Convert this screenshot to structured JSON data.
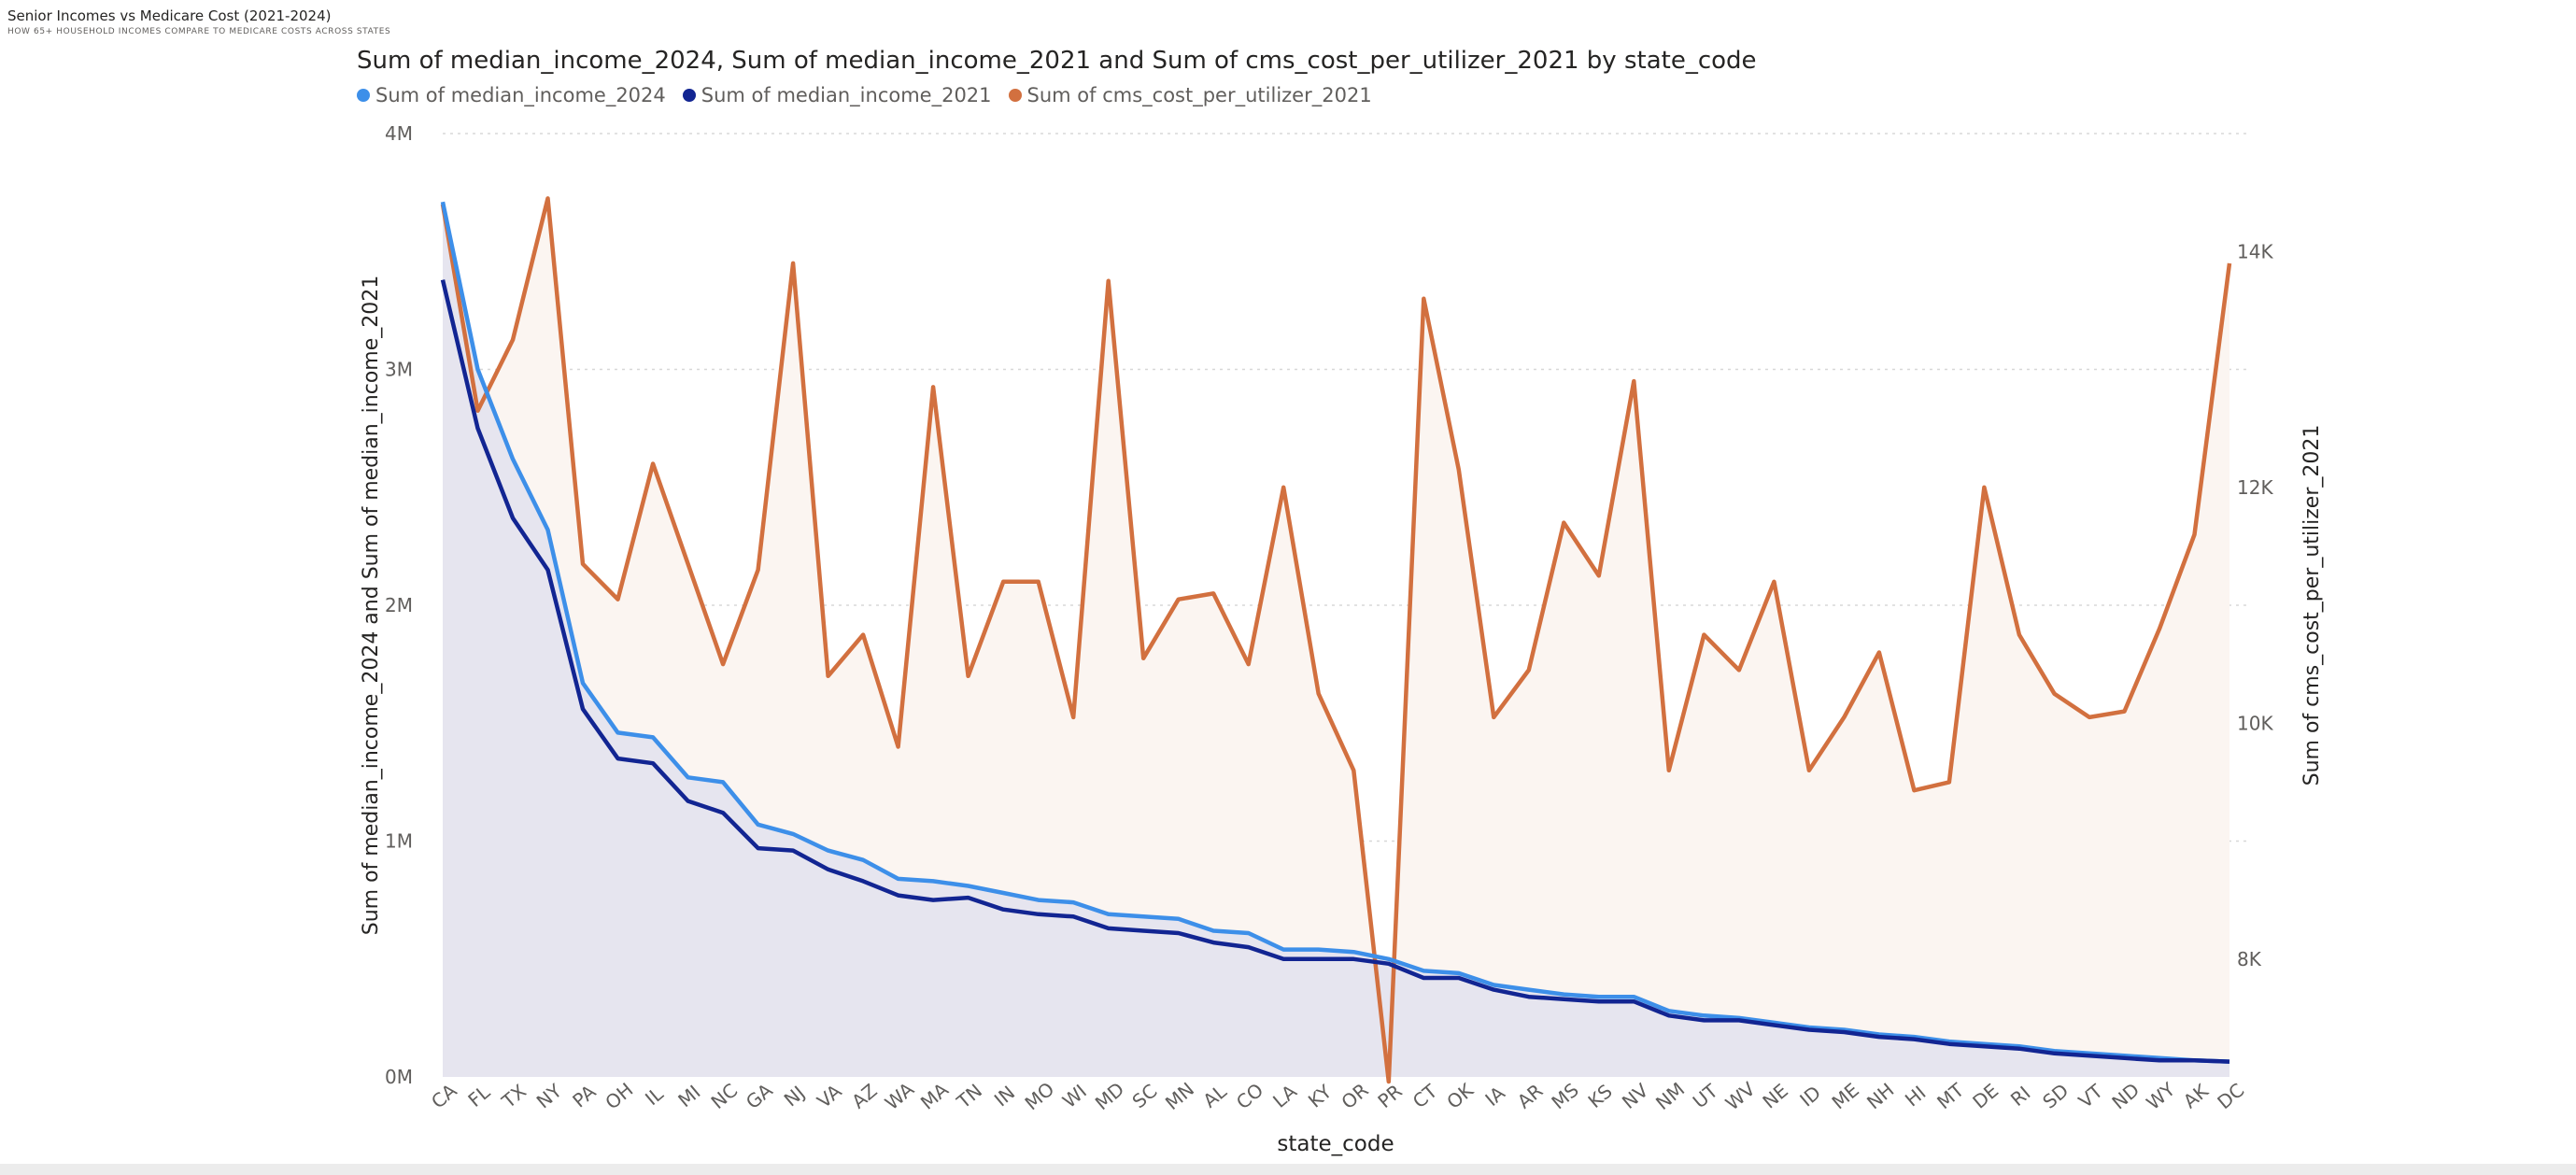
{
  "report": {
    "title": "Senior Incomes vs Medicare Cost (2021-2024)",
    "subtitle": "HOW 65+ HOUSEHOLD INCOMES COMPARE TO MEDICARE COSTS ACROSS STATES"
  },
  "colors": {
    "series_2024": "#3d8fe9",
    "series_2021": "#122592",
    "series_cms": "#d2703f",
    "area_income": "#e6e5ef",
    "area_cms": "#fbf5f1",
    "grid": "#d8d8d8",
    "axis_text": "#605e5c"
  },
  "chart_data": {
    "type": "line",
    "title": "Sum of median_income_2024, Sum of median_income_2021 and Sum of cms_cost_per_utilizer_2021 by state_code",
    "xlabel": "state_code",
    "ylabel": "Sum of median_income_2024 and Sum of median_income_2021",
    "y2label": "Sum of cms_cost_per_utilizer_2021",
    "ylim": [
      0,
      4000000
    ],
    "y2lim": [
      7000,
      15000
    ],
    "yticks": [
      "0M",
      "1M",
      "2M",
      "3M",
      "4M"
    ],
    "y2ticks": [
      "8K",
      "10K",
      "12K",
      "14K"
    ],
    "grid": true,
    "legend_position": "top-left",
    "categories": [
      "CA",
      "FL",
      "TX",
      "NY",
      "PA",
      "OH",
      "IL",
      "MI",
      "NC",
      "GA",
      "NJ",
      "VA",
      "AZ",
      "WA",
      "MA",
      "TN",
      "IN",
      "MO",
      "WI",
      "MD",
      "SC",
      "MN",
      "AL",
      "CO",
      "LA",
      "KY",
      "OR",
      "PR",
      "CT",
      "OK",
      "IA",
      "AR",
      "MS",
      "KS",
      "NV",
      "NM",
      "UT",
      "WV",
      "NE",
      "ID",
      "ME",
      "NH",
      "HI",
      "MT",
      "DE",
      "RI",
      "SD",
      "VT",
      "ND",
      "WY",
      "AK",
      "DC"
    ],
    "x_tick_labels": [
      "CA",
      "FL",
      "TX",
      "NY",
      "PA",
      "OH",
      "IL",
      "MI",
      "NC",
      "GA",
      "NJ",
      "VA",
      "AZ",
      "WA",
      "MA",
      "TN",
      "IN",
      "MO",
      "WI",
      "MD",
      "SC",
      "MN",
      "AL",
      "CO",
      "LA",
      "KY",
      "OR",
      "PR",
      "CT",
      "OK",
      "IA",
      "AR",
      "MS",
      "KS",
      "NV",
      "NM",
      "UT",
      "WV",
      "NE",
      "ID",
      "ME",
      "NH",
      "HI",
      "MT",
      "DE",
      "RI",
      "SD",
      "VT",
      "ND",
      "WY",
      "AK",
      "DC"
    ],
    "series": [
      {
        "name": "Sum of median_income_2024",
        "axis": "left",
        "values": [
          3710000,
          3000000,
          2620000,
          2320000,
          1670000,
          1460000,
          1440000,
          1270000,
          1250000,
          1070000,
          1030000,
          960000,
          920000,
          840000,
          830000,
          810000,
          780000,
          750000,
          740000,
          690000,
          680000,
          670000,
          620000,
          610000,
          540000,
          540000,
          530000,
          500000,
          450000,
          440000,
          390000,
          370000,
          350000,
          340000,
          340000,
          280000,
          260000,
          250000,
          230000,
          210000,
          200000,
          180000,
          170000,
          150000,
          140000,
          130000,
          110000,
          100000,
          90000,
          80000,
          70000,
          65000
        ]
      },
      {
        "name": "Sum of median_income_2021",
        "axis": "left",
        "values": [
          3380000,
          2750000,
          2370000,
          2150000,
          1560000,
          1350000,
          1330000,
          1170000,
          1120000,
          970000,
          960000,
          880000,
          830000,
          770000,
          750000,
          760000,
          710000,
          690000,
          680000,
          630000,
          620000,
          610000,
          570000,
          550000,
          500000,
          500000,
          500000,
          480000,
          420000,
          420000,
          370000,
          340000,
          330000,
          320000,
          320000,
          260000,
          240000,
          240000,
          220000,
          200000,
          190000,
          170000,
          160000,
          140000,
          130000,
          120000,
          100000,
          90000,
          80000,
          70000,
          70000,
          65000
        ]
      },
      {
        "name": "Sum of cms_cost_per_utilizer_2021",
        "axis": "right",
        "values": [
          14400,
          12650,
          13250,
          14450,
          11350,
          11050,
          12200,
          11350,
          10500,
          11300,
          13900,
          10400,
          10750,
          9800,
          12850,
          10400,
          11200,
          11200,
          10050,
          13750,
          10550,
          11050,
          11100,
          10500,
          12000,
          10250,
          9600,
          6960,
          13600,
          12150,
          10050,
          10450,
          11700,
          11250,
          12900,
          9600,
          10750,
          10450,
          11200,
          9600,
          10050,
          10600,
          9430,
          9500,
          12000,
          10750,
          10250,
          10050,
          10100,
          10800,
          11600,
          13900
        ]
      }
    ]
  }
}
